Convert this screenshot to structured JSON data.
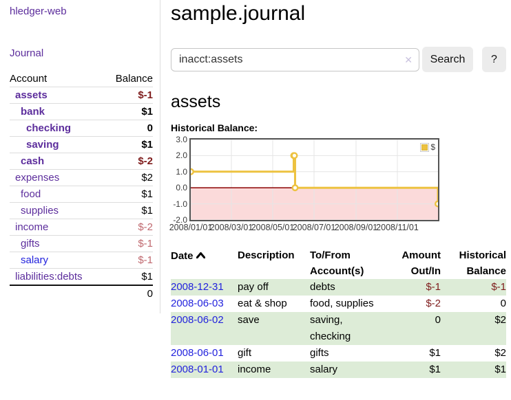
{
  "app": {
    "brand": "hledger-web",
    "nav_journal": "Journal"
  },
  "sidebar": {
    "table": {
      "account_header": "Account",
      "balance_header": "Balance",
      "rows": [
        {
          "account": "assets",
          "balance": "$-1"
        },
        {
          "account": "bank",
          "balance": "$1"
        },
        {
          "account": "checking",
          "balance": "0"
        },
        {
          "account": "saving",
          "balance": "$1"
        },
        {
          "account": "cash",
          "balance": "$-2"
        },
        {
          "account": "expenses",
          "balance": "$2"
        },
        {
          "account": "food",
          "balance": "$1"
        },
        {
          "account": "supplies",
          "balance": "$1"
        },
        {
          "account": "income",
          "balance": "$-2"
        },
        {
          "account": "gifts",
          "balance": "$-1"
        },
        {
          "account": "salary",
          "balance": "$-1"
        },
        {
          "account": "liabilities:debts",
          "balance": "$1"
        }
      ],
      "total": "0"
    }
  },
  "header": {
    "title": "sample.journal"
  },
  "search": {
    "value": "inacct:assets",
    "clear_icon": "✕",
    "button_label": "Search",
    "help_label": "?"
  },
  "account_page": {
    "title": "assets",
    "chart_label": "Historical Balance:"
  },
  "chart_data": {
    "type": "line",
    "step": true,
    "title": "Historical Balance:",
    "series": [
      {
        "name": "$",
        "color": "#edc240",
        "points": [
          [
            "2008-01-01",
            1
          ],
          [
            "2008-06-01",
            2
          ],
          [
            "2008-06-02",
            2
          ],
          [
            "2008-06-03",
            0
          ],
          [
            "2008-12-31",
            -1
          ]
        ]
      }
    ],
    "x_range": [
      "2008-01-01",
      "2008-12-31"
    ],
    "x_ticks": [
      "2008/01/01",
      "2008/03/01",
      "2008/05/01",
      "2008/07/01",
      "2008/09/01",
      "2008/11/01"
    ],
    "y_ticks": [
      "3.0",
      "2.0",
      "1.0",
      "0.0",
      "-1.0",
      "-2.0"
    ],
    "ylim": [
      -2,
      3
    ],
    "grid": true,
    "grid_color": "#e5e5e5",
    "negative_region_color": "#fbdada",
    "zero_line_color": "#8b0000",
    "marker_fill": "#fffdf2",
    "legend": {
      "label": "$",
      "position": "top-right"
    }
  },
  "register": {
    "columns": {
      "date": "Date",
      "description": "Description",
      "accounts": "To/From Account(s)",
      "amount": "Amount Out/In",
      "balance": "Historical Balance"
    },
    "rows": [
      {
        "date": "2008-12-31",
        "description": "pay off",
        "accounts": "debts",
        "amount": "$-1",
        "balance": "$-1"
      },
      {
        "date": "2008-06-03",
        "description": "eat & shop",
        "accounts": "food, supplies",
        "amount": "$-2",
        "balance": "0"
      },
      {
        "date": "2008-06-02",
        "description": "save",
        "accounts": "saving, checking",
        "amount": "0",
        "balance": "$2"
      },
      {
        "date": "2008-06-01",
        "description": "gift",
        "accounts": "gifts",
        "amount": "$1",
        "balance": "$2"
      },
      {
        "date": "2008-01-01",
        "description": "income",
        "accounts": "salary",
        "amount": "$1",
        "balance": "$1"
      }
    ]
  }
}
